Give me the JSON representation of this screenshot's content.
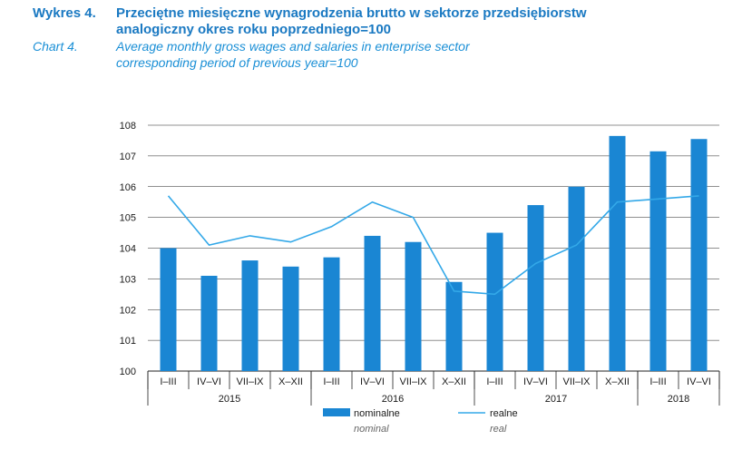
{
  "header": {
    "label_pl": "Wykres 4.",
    "title_pl_line1": "Przeciętne miesięczne wynagrodzenia brutto w sektorze przedsiębiorstw",
    "title_pl_line2": "analogiczny okres roku poprzedniego=100",
    "label_en": "Chart 4.",
    "title_en_line1": "Average monthly gross wages and salaries in enterprise sector",
    "title_en_line2": "corresponding period of previous year=100"
  },
  "colors": {
    "bar": "#1a86d3",
    "line": "#33a8e8",
    "title": "#1a79c2",
    "subtitle": "#1a8fd6",
    "grid": "#222222"
  },
  "legend": {
    "nominal_pl": "nominalne",
    "nominal_en": "nominal",
    "real_pl": "realne",
    "real_en": "real"
  },
  "chart_data": {
    "type": "bar",
    "categories": [
      "I–III",
      "IV–VI",
      "VII–IX",
      "X–XII",
      "I–III",
      "IV–VI",
      "VII–IX",
      "X–XII",
      "I–III",
      "IV–VI",
      "VII–IX",
      "X–XII",
      "I–III",
      "IV–VI"
    ],
    "years": [
      {
        "label": "2015",
        "span": 4
      },
      {
        "label": "2016",
        "span": 4
      },
      {
        "label": "2017",
        "span": 4
      },
      {
        "label": "2018",
        "span": 2
      }
    ],
    "series": [
      {
        "name": "nominalne",
        "type": "bar",
        "values": [
          104.0,
          103.1,
          103.6,
          103.4,
          103.7,
          104.4,
          104.2,
          102.9,
          104.5,
          105.4,
          106.0,
          107.65,
          107.15,
          107.55
        ]
      },
      {
        "name": "realne",
        "type": "line",
        "values": [
          105.7,
          104.1,
          104.4,
          104.2,
          104.7,
          105.5,
          105.0,
          102.6,
          102.5,
          103.5,
          104.1,
          105.5,
          105.6,
          105.7
        ]
      }
    ],
    "ylim": [
      100,
      108
    ],
    "yticks": [
      100,
      101,
      102,
      103,
      104,
      105,
      106,
      107,
      108
    ],
    "grid": true
  }
}
